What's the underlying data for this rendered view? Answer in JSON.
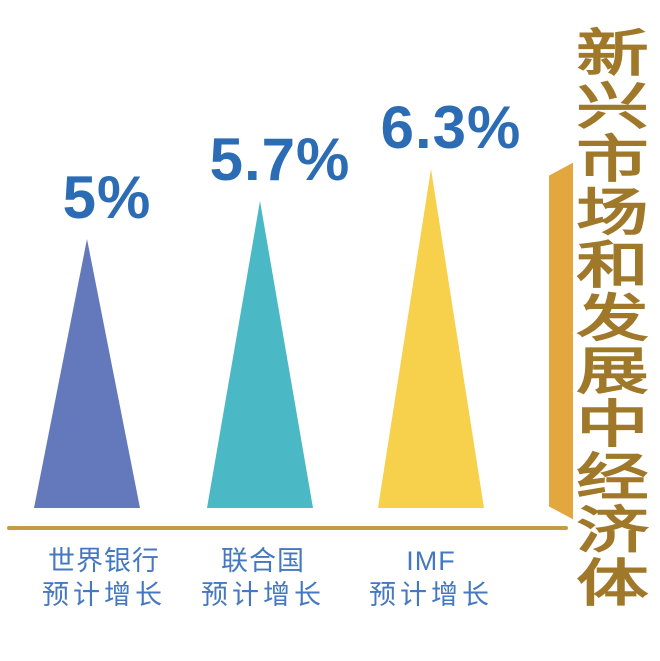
{
  "chart_data": {
    "type": "bar",
    "variant": "pictorial-triangle",
    "title": "新兴市场和发展中经济体",
    "categories": [
      "世界银行预计增长",
      "联合国预计增长",
      "IMF预计增长"
    ],
    "values": [
      5,
      5.7,
      6.3
    ],
    "value_labels": [
      "5%",
      "5.7%",
      "6.3%"
    ],
    "unit": "%",
    "ylim": [
      0,
      6.5
    ],
    "grid": false,
    "legend": false,
    "bar_colors": [
      "#6379bc",
      "#4ab8c5",
      "#f7d04c"
    ]
  },
  "bars": [
    {
      "value_label": "5%",
      "line1": "世界银行",
      "line2": "预计增长"
    },
    {
      "value_label": "5.7%",
      "line1": "联合国",
      "line2": "预计增长"
    },
    {
      "value_label": "6.3%",
      "line1": "IMF",
      "line2": "预计增长"
    }
  ],
  "side_title": {
    "text": "新兴市场和发展中经济体"
  },
  "colors": {
    "value_label": "#2b6cb4",
    "category_label": "#4478c0",
    "baseline": "#c49a44",
    "ribbon": "#e2a83f",
    "ribbon_outline": "#ffffff",
    "title_text": "#a0782a",
    "bar1": "#6379bc",
    "bar2": "#4ab8c5",
    "bar3": "#f7d04c"
  }
}
